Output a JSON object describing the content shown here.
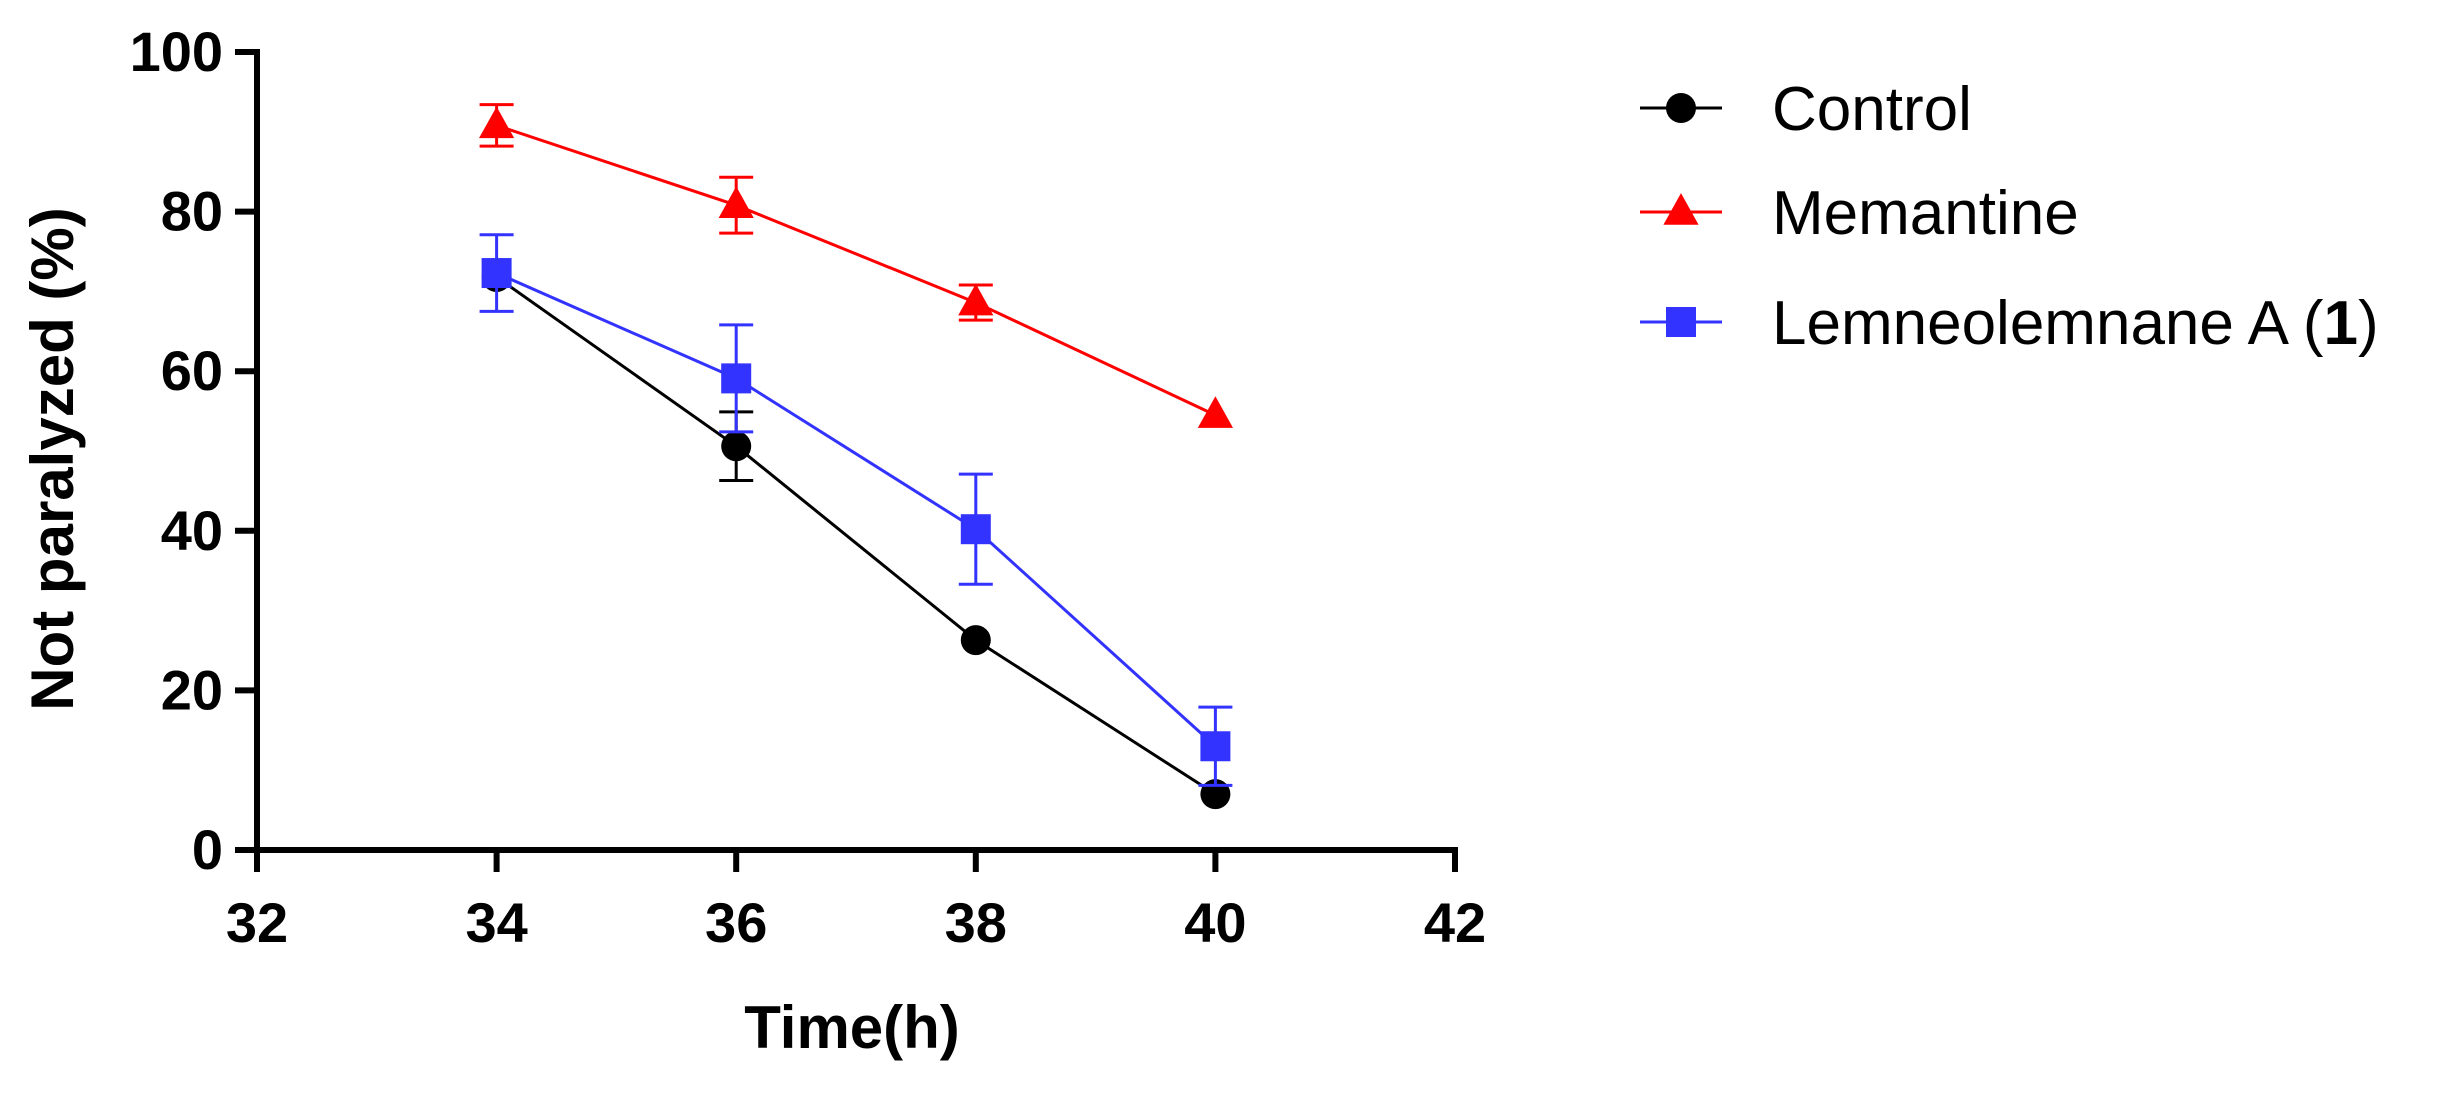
{
  "chart_data": {
    "type": "line",
    "title": "",
    "xlabel": "Time(h)",
    "ylabel": "Not paralyzed (%)",
    "xlim": [
      32,
      42
    ],
    "ylim": [
      0,
      100
    ],
    "xticks": [
      "32",
      "34",
      "36",
      "38",
      "40",
      "42"
    ],
    "yticks": [
      "0",
      "20",
      "40",
      "60",
      "80",
      "100"
    ],
    "legend_position": "top-right, outside plot",
    "series": [
      {
        "name": "Control",
        "label_main": "Control",
        "label_bold": "",
        "label_end": "",
        "color": "#000000",
        "marker": "circle",
        "x": [
          34,
          36,
          38,
          40
        ],
        "y": [
          71.8,
          50.6,
          26.3,
          7.0
        ],
        "err": [
          0.0,
          4.3,
          0.0,
          0.0
        ]
      },
      {
        "name": "Memantine",
        "label_main": "Memantine",
        "label_bold": "",
        "label_end": "",
        "color": "#ff0000",
        "marker": "triangle",
        "x": [
          34,
          36,
          38,
          40
        ],
        "y": [
          90.8,
          80.8,
          68.6,
          54.5
        ],
        "err": [
          2.6,
          3.5,
          2.2,
          0.0
        ]
      },
      {
        "name": "Lemneolemnane A (1)",
        "label_main": "Lemneolemnane A (",
        "label_bold": "1",
        "label_end": ")",
        "color": "#3333ff",
        "marker": "square",
        "x": [
          34,
          36,
          38,
          40
        ],
        "y": [
          72.3,
          59.1,
          40.2,
          13.0
        ],
        "err": [
          4.8,
          6.7,
          6.9,
          4.9
        ]
      }
    ]
  }
}
